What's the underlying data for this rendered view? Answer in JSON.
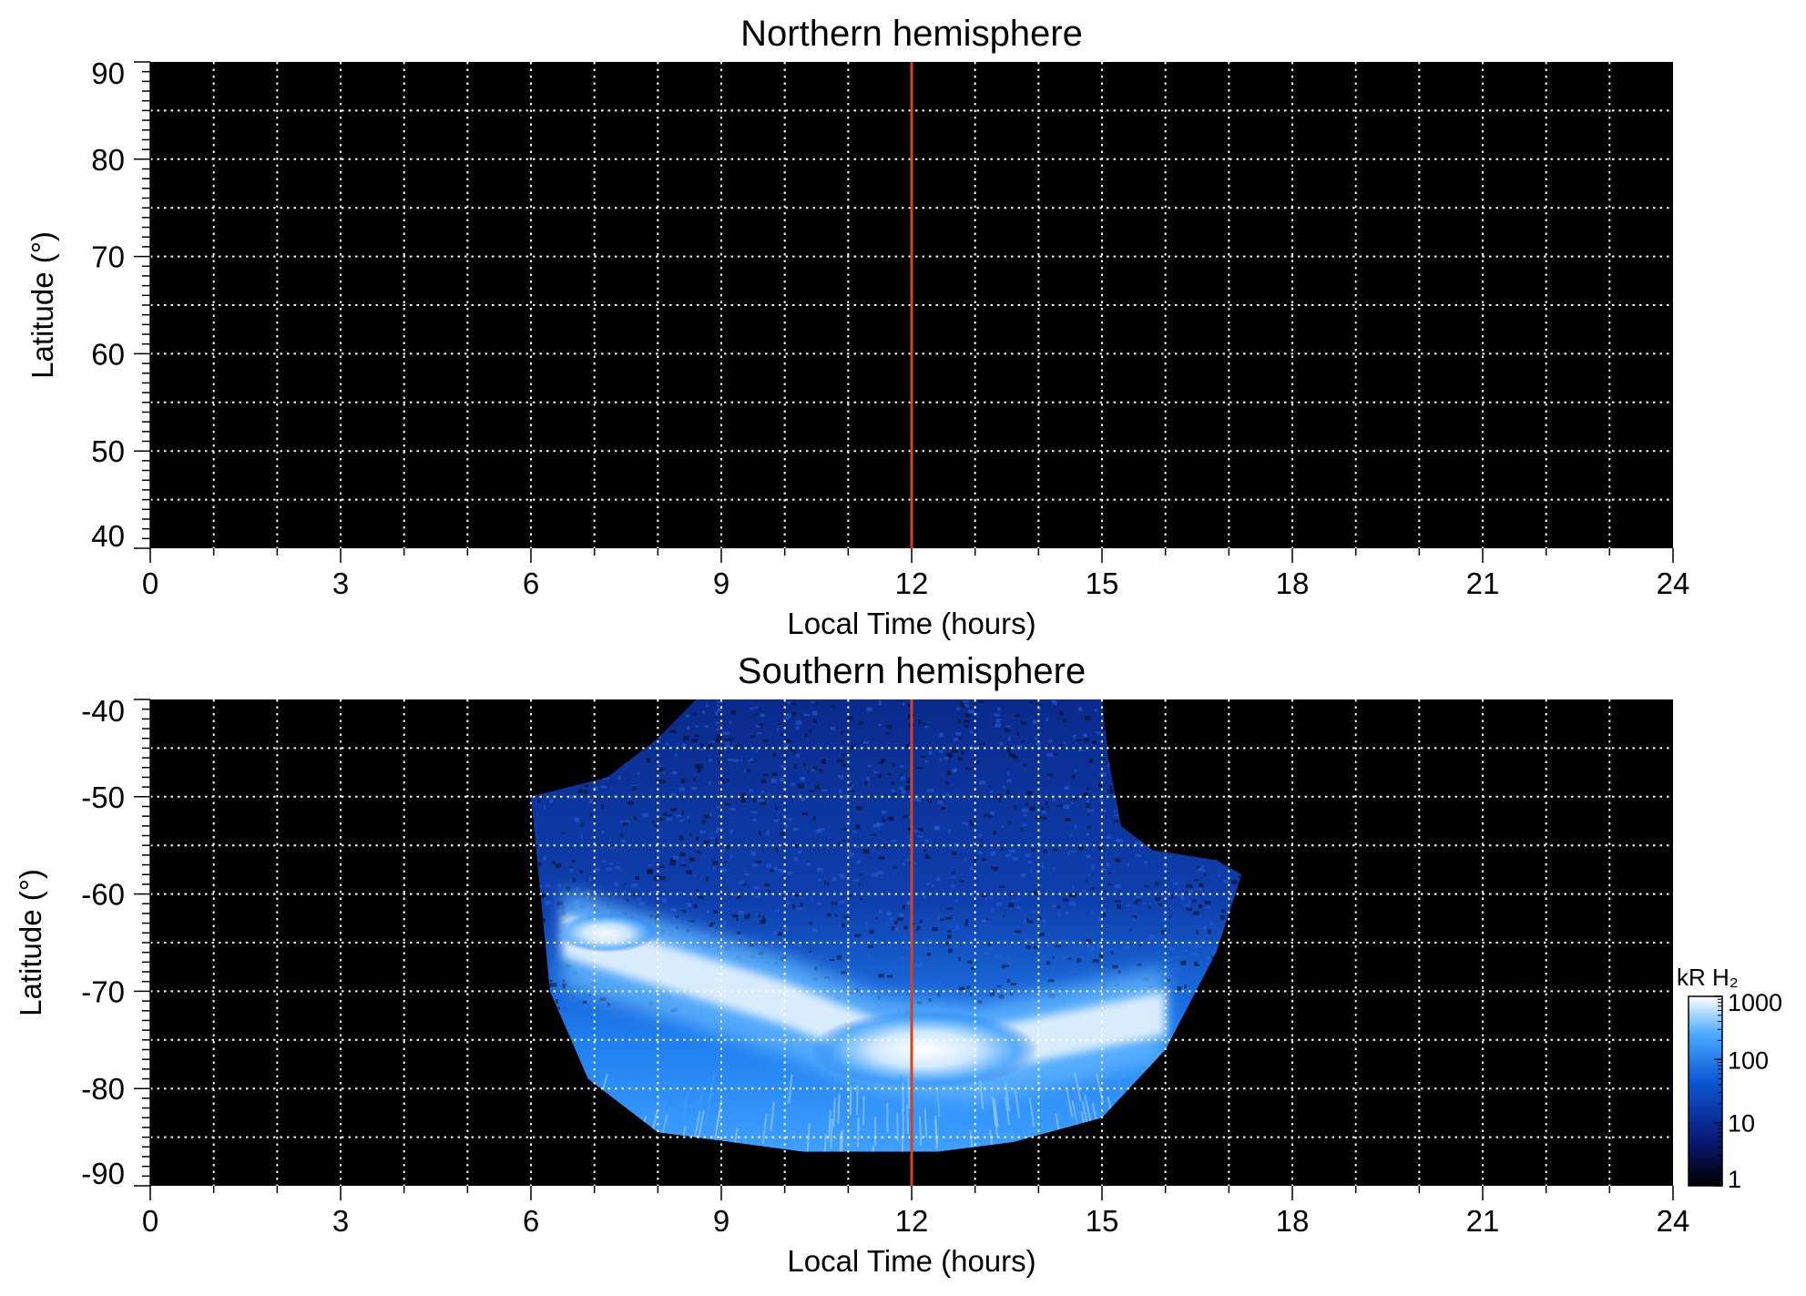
{
  "chart_data": [
    {
      "type": "heatmap",
      "title": "Northern hemisphere",
      "xlabel": "Local Time (hours)",
      "ylabel": "Latitude (°)",
      "xlim": [
        0,
        24
      ],
      "ylim": [
        40,
        90
      ],
      "xticks": [
        "0",
        "3",
        "6",
        "9",
        "12",
        "15",
        "18",
        "21",
        "24"
      ],
      "yticks": [
        "40",
        "50",
        "60",
        "70",
        "80",
        "90"
      ],
      "grid": true,
      "background": "#000000",
      "noon_marker": {
        "x": 12,
        "color": "#d9401e"
      },
      "emission": "none"
    },
    {
      "type": "heatmap",
      "title": "Southern hemisphere",
      "xlabel": "Local Time (hours)",
      "ylabel": "Latitude (°)",
      "xlim": [
        0,
        24
      ],
      "ylim": [
        -90,
        -40
      ],
      "xticks": [
        "0",
        "3",
        "6",
        "9",
        "12",
        "15",
        "18",
        "21",
        "24"
      ],
      "yticks": [
        "-40",
        "-50",
        "-60",
        "-70",
        "-80",
        "-90"
      ],
      "grid": true,
      "background": "#000000",
      "noon_marker": {
        "x": 12,
        "color": "#d9401e"
      },
      "coverage_region": {
        "local_time_range": [
          6,
          17.2
        ],
        "latitude_range": [
          -86.5,
          -40
        ]
      },
      "aurora_oval": {
        "center_latitude_at_LT": [
          {
            "lt": 6.5,
            "lat": -64
          },
          {
            "lt": 8,
            "lat": -67
          },
          {
            "lt": 10,
            "lat": -71
          },
          {
            "lt": 11.5,
            "lat": -75
          },
          {
            "lt": 13,
            "lat": -76
          },
          {
            "lt": 14.5,
            "lat": -74
          },
          {
            "lt": 16,
            "lat": -72
          }
        ],
        "peak_brightness_kR": 1000
      },
      "colorbar": {
        "unit": "kR H₂",
        "scale": "log",
        "range": [
          1,
          1000
        ],
        "ticks": [
          "1",
          "10",
          "100",
          "1000"
        ],
        "colors": [
          "#000000",
          "#0a1a7a",
          "#0c58d6",
          "#4aaaff",
          "#ffffff"
        ]
      }
    }
  ]
}
